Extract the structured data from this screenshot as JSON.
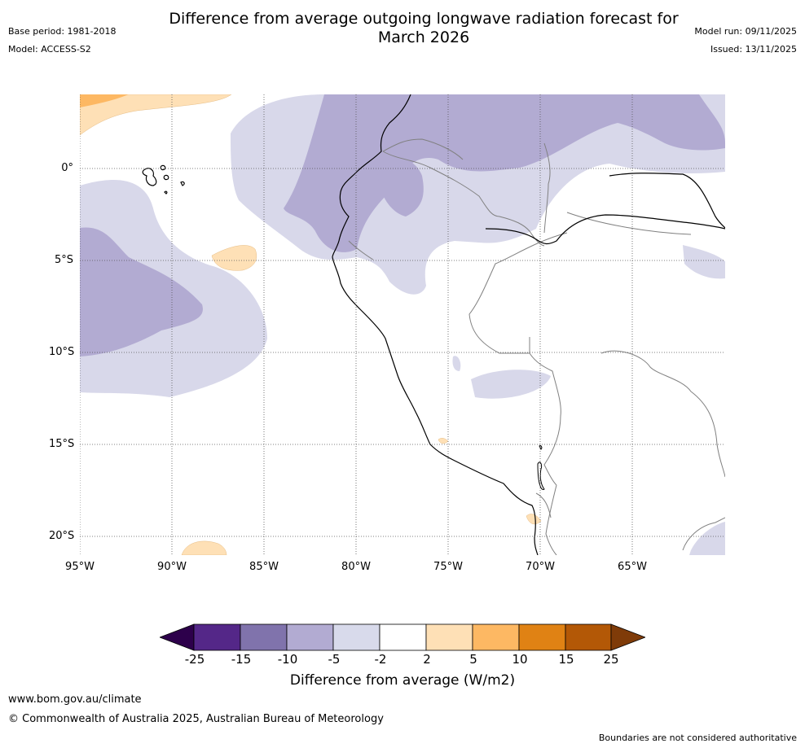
{
  "header": {
    "title_line1": "Difference from average outgoing longwave radiation forecast for",
    "title_line2": "March 2026",
    "base_period": "Base period: 1981-2018",
    "model": "Model: ACCESS-S2",
    "model_run": "Model run: 09/11/2025",
    "issued": "Issued: 13/11/2025"
  },
  "map": {
    "lon_range": [
      -95,
      -60
    ],
    "lat_range": [
      -21,
      4
    ],
    "lat_labels": [
      "0°",
      "5°S",
      "10°S",
      "15°S",
      "20°S"
    ],
    "lon_labels": [
      "95°W",
      "90°W",
      "85°W",
      "80°W",
      "75°W",
      "70°W",
      "65°W"
    ],
    "colors": {
      "purple_dark": "#4f2185",
      "purple_mid": "#7f6fae",
      "purple_light": "#b2abd2",
      "purple_pale": "#d8d8ea",
      "orange_pale": "#fee0b6",
      "orange_light": "#fdb863",
      "coast": "#000000",
      "border": "#808080"
    }
  },
  "colorbar": {
    "ticks": [
      "-25",
      "-15",
      "-10",
      "-5",
      "-2",
      "2",
      "5",
      "10",
      "15",
      "25"
    ],
    "colors": [
      "#2d004b",
      "#542788",
      "#8073ac",
      "#b2abd2",
      "#d8daeb",
      "#ffffff",
      "#fee0b6",
      "#fdb863",
      "#e08214",
      "#b35806",
      "#7f3b08"
    ],
    "label": "Difference from average (W/m2)"
  },
  "footer": {
    "website": "www.bom.gov.au/climate",
    "copyright": "© Commonwealth of Australia 2025, Australian Bureau of Meteorology",
    "disclaimer": "Boundaries are not considered authoritative"
  }
}
